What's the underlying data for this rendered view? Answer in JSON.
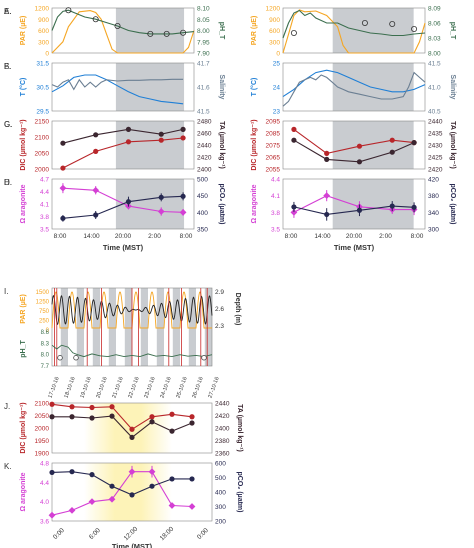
{
  "colors": {
    "par": "#f5a623",
    "ph": "#3b6e4e",
    "temp": "#1f7fd6",
    "salinity": "#6b7f93",
    "dic": "#b8262a",
    "ta": "#3b2630",
    "arag": "#d43fd4",
    "pco2": "#262850",
    "night": "#c9ccd0",
    "day": "#fdf3b8"
  },
  "chart_data": [
    {
      "id": "A",
      "type": "line",
      "panel": "A.",
      "xlim": [
        0,
        26
      ],
      "ylabel_left": "PAR (µE)",
      "ylabel_right": "pH_T",
      "left_ticks": [
        "0",
        "300",
        "600",
        "900",
        "1200"
      ],
      "right_ticks": [
        "7.90",
        "7.95",
        "8.00",
        "8.05",
        "8.10"
      ],
      "ylim_left": [
        0,
        1200
      ],
      "ylim_right": [
        7.9,
        8.1
      ],
      "series": [
        {
          "axis": "left",
          "color": "par",
          "x": [
            0,
            2,
            3,
            5,
            7,
            8,
            9,
            10,
            11,
            12,
            24,
            25,
            26
          ],
          "y": [
            0,
            300,
            700,
            1100,
            1130,
            1080,
            900,
            500,
            100,
            0,
            0,
            150,
            600
          ]
        },
        {
          "axis": "right",
          "color": "ph",
          "x": [
            0,
            1,
            2,
            3,
            4,
            6,
            8,
            10,
            12,
            14,
            16,
            18,
            20,
            22,
            24,
            26
          ],
          "y": [
            8.0,
            8.06,
            8.085,
            8.09,
            8.08,
            8.06,
            8.05,
            8.035,
            8.02,
            8.0,
            7.99,
            7.985,
            7.985,
            7.985,
            7.99,
            7.995
          ],
          "markers": {
            "x": [
              3,
              8,
              12,
              18,
              21,
              24
            ],
            "y": [
              8.09,
              8.05,
              8.02,
              7.985,
              7.985,
              7.99
            ]
          }
        }
      ]
    },
    {
      "id": "B",
      "type": "line",
      "panel": "B.",
      "xlim": [
        0,
        26
      ],
      "ylabel_left": "T (°C)",
      "ylabel_right": "Salinity",
      "left_ticks": [
        "29.5",
        "30.5",
        "31.5"
      ],
      "right_ticks": [
        "41.5",
        "41.6",
        "41.7"
      ],
      "ylim_left": [
        29.5,
        31.5
      ],
      "ylim_right": [
        41.5,
        41.7
      ],
      "series": [
        {
          "axis": "left",
          "color": "temp",
          "x": [
            0,
            2,
            4,
            6,
            8,
            10,
            12,
            14,
            16,
            18,
            20,
            22,
            24
          ],
          "y": [
            30.3,
            30.55,
            30.9,
            31.0,
            31.0,
            30.8,
            30.55,
            30.3,
            30.1,
            30.0,
            29.9,
            29.85,
            29.8
          ]
        },
        {
          "axis": "right",
          "color": "salinity",
          "x": [
            0,
            1,
            2,
            3,
            4,
            5,
            6,
            7,
            8,
            9,
            10,
            12,
            14,
            16,
            18,
            20,
            22,
            24
          ],
          "y": [
            41.61,
            41.6,
            41.62,
            41.63,
            41.59,
            41.63,
            41.6,
            41.62,
            41.6,
            41.62,
            41.63,
            41.625,
            41.628,
            41.628,
            41.63,
            41.63,
            41.632,
            41.632
          ]
        }
      ]
    },
    {
      "id": "C",
      "type": "line",
      "panel": "C.",
      "xlim": [
        0,
        26
      ],
      "ylabel_left": "DIC (µmol kg⁻¹)",
      "ylabel_right": "TA (µmol kg⁻¹)",
      "left_ticks": [
        "2000",
        "2050",
        "2100",
        "2150"
      ],
      "right_ticks": [
        "2400",
        "2420",
        "2440",
        "2460",
        "2480"
      ],
      "ylim_left": [
        2000,
        2150
      ],
      "ylim_right": [
        2400,
        2480
      ],
      "series": [
        {
          "axis": "left",
          "color": "dic",
          "x": [
            2,
            8,
            14,
            20,
            24
          ],
          "y": [
            2003,
            2055,
            2085,
            2090,
            2097
          ]
        },
        {
          "axis": "right",
          "color": "ta",
          "x": [
            2,
            8,
            14,
            20,
            24
          ],
          "y": [
            2443,
            2457,
            2466,
            2458,
            2466
          ]
        }
      ]
    },
    {
      "id": "D",
      "type": "line",
      "panel": "D.",
      "xlim": [
        0,
        26
      ],
      "ylabel_left": "Ω aragonite",
      "ylabel_right": "pCO₂ (µatm)",
      "left_ticks": [
        "3.5",
        "3.8",
        "4.1",
        "4.4",
        "4.7"
      ],
      "right_ticks": [
        "350",
        "400",
        "450",
        "500"
      ],
      "ylim_left": [
        3.5,
        4.7
      ],
      "ylim_right": [
        350,
        500
      ],
      "series": [
        {
          "axis": "left",
          "color": "arag",
          "x": [
            2,
            8,
            14,
            20,
            24
          ],
          "y": [
            4.48,
            4.43,
            4.05,
            3.92,
            3.9
          ],
          "err": [
            0.12,
            0.1,
            0.08,
            0.1,
            0.08
          ]
        },
        {
          "axis": "right",
          "color": "pco2",
          "x": [
            2,
            8,
            14,
            20,
            24
          ],
          "y": [
            382,
            392,
            432,
            445,
            448
          ],
          "err": [
            10,
            12,
            15,
            12,
            12
          ]
        }
      ],
      "x_ticks": [
        "8:00",
        "14:00",
        "20:00",
        "2:00",
        "8:00"
      ],
      "xlabel": "Time (MST)"
    },
    {
      "id": "E",
      "type": "line",
      "panel": "E.",
      "xlim": [
        0,
        26
      ],
      "ylabel_left": "PAR (µE)",
      "ylabel_right": "pH_T",
      "left_ticks": [
        "0",
        "300",
        "600",
        "900",
        "1200"
      ],
      "right_ticks": [
        "8.00",
        "8.03",
        "8.06",
        "8.09"
      ],
      "ylim_left": [
        0,
        1200
      ],
      "ylim_right": [
        8.0,
        8.09
      ],
      "series": [
        {
          "axis": "left",
          "color": "par",
          "x": [
            0,
            1,
            2,
            3,
            4,
            6,
            8,
            10,
            11,
            12,
            24,
            25,
            26
          ],
          "y": [
            0,
            500,
            1000,
            1150,
            1100,
            1120,
            1000,
            700,
            200,
            0,
            0,
            300,
            800
          ]
        },
        {
          "axis": "right",
          "color": "ph",
          "x": [
            0,
            1,
            2,
            3,
            4,
            5,
            6,
            8,
            10,
            12,
            14,
            16,
            18,
            20,
            22,
            24,
            26
          ],
          "y": [
            8.03,
            8.06,
            8.08,
            8.085,
            8.075,
            8.08,
            8.07,
            8.06,
            8.06,
            8.05,
            8.045,
            8.04,
            8.038,
            8.035,
            8.035,
            8.038,
            8.04
          ],
          "markers": {
            "x": [
              2,
              15,
              20,
              24
            ],
            "y": [
              8.04,
              8.06,
              8.058,
              8.048
            ]
          }
        }
      ]
    },
    {
      "id": "F",
      "type": "line",
      "panel": "F.",
      "xlim": [
        0,
        26
      ],
      "ylabel_left": "T (°C)",
      "ylabel_right": "Salinity",
      "left_ticks": [
        "23",
        "24",
        "25"
      ],
      "right_ticks": [
        "40.5",
        "41.0",
        "41.5"
      ],
      "ylim_left": [
        23,
        25
      ],
      "ylim_right": [
        40.5,
        41.5
      ],
      "series": [
        {
          "axis": "left",
          "color": "temp",
          "x": [
            0,
            2,
            4,
            6,
            8,
            10,
            12,
            14,
            16,
            18,
            20,
            22,
            24,
            26
          ],
          "y": [
            23.6,
            23.9,
            24.3,
            24.6,
            24.7,
            24.6,
            24.4,
            24.2,
            24.0,
            23.9,
            23.8,
            23.8,
            23.9,
            24.1
          ]
        },
        {
          "axis": "right",
          "color": "salinity",
          "x": [
            0,
            1,
            2,
            3,
            4,
            5,
            6,
            7,
            8,
            9,
            10,
            11,
            12,
            14,
            16,
            18,
            20,
            22,
            23,
            24,
            25,
            26
          ],
          "y": [
            40.6,
            40.7,
            40.9,
            41.1,
            41.15,
            41.2,
            41.15,
            41.25,
            41.2,
            41.1,
            41.0,
            40.95,
            40.9,
            40.85,
            40.8,
            40.75,
            40.75,
            40.8,
            41.0,
            41.3,
            41.2,
            41.1
          ]
        }
      ]
    },
    {
      "id": "G",
      "type": "line",
      "panel": "G.",
      "xlim": [
        0,
        26
      ],
      "ylabel_left": "DIC (µmol kg⁻¹)",
      "ylabel_right": "TA (µmol kg⁻¹)",
      "left_ticks": [
        "2055",
        "2065",
        "2075",
        "2085",
        "2095"
      ],
      "right_ticks": [
        "2420",
        "2425",
        "2430",
        "2435",
        "2440"
      ],
      "ylim_left": [
        2055,
        2095
      ],
      "ylim_right": [
        2420,
        2440
      ],
      "series": [
        {
          "axis": "left",
          "color": "dic",
          "x": [
            2,
            8,
            14,
            20,
            24
          ],
          "y": [
            2088,
            2068,
            2074,
            2079,
            2077
          ]
        },
        {
          "axis": "right",
          "color": "ta",
          "x": [
            2,
            8,
            14,
            20,
            24
          ],
          "y": [
            2432,
            2424,
            2423,
            2427,
            2431
          ]
        }
      ]
    },
    {
      "id": "H",
      "type": "line",
      "panel": "H.",
      "xlim": [
        0,
        26
      ],
      "ylabel_left": "Ω aragonite",
      "ylabel_right": "pCO₂ (µatm)",
      "left_ticks": [
        "3.5",
        "3.8",
        "4.1",
        "4.4"
      ],
      "right_ticks": [
        "300",
        "340",
        "380",
        "420"
      ],
      "ylim_left": [
        3.5,
        4.4
      ],
      "ylim_right": [
        300,
        420
      ],
      "series": [
        {
          "axis": "left",
          "color": "arag",
          "x": [
            2,
            8,
            14,
            20,
            24
          ],
          "y": [
            3.8,
            4.1,
            3.9,
            3.85,
            3.85
          ],
          "err": [
            0.1,
            0.1,
            0.1,
            0.08,
            0.1
          ]
        },
        {
          "axis": "right",
          "color": "pco2",
          "x": [
            2,
            8,
            14,
            20,
            24
          ],
          "y": [
            353,
            335,
            345,
            355,
            352
          ],
          "err": [
            12,
            15,
            14,
            12,
            12
          ]
        }
      ],
      "x_ticks": [
        "8:00",
        "14:00",
        "20:00",
        "2:00",
        "8:00"
      ],
      "xlabel": "Time (MST)"
    },
    {
      "id": "I",
      "type": "line",
      "panel": "I.",
      "xlim": [
        0,
        10
      ],
      "ylabel_par": "PAR (µE)",
      "par_ticks": [
        "0",
        "250",
        "750",
        "1250",
        "1500"
      ],
      "ylabel_depth": "Depth (m)",
      "depth_ticks": [
        "2.3",
        "2.6",
        "2.9"
      ],
      "ylabel_ph": "pH_T",
      "ph_ticks": [
        "7.7",
        "8.0",
        "8.3",
        "8.6"
      ],
      "dates": [
        "17-10-16",
        "18-10-16",
        "19-10-16",
        "20-10-16",
        "21-10-16",
        "22-10-16",
        "23-10-16",
        "24-10-16",
        "25-10-16",
        "26-10-16",
        "27-10-16"
      ],
      "ph_series": {
        "x": [
          0,
          0.3,
          0.6,
          1,
          1.3,
          1.6,
          2,
          2.5,
          3,
          3.5,
          4,
          4.5,
          5,
          5.5,
          6,
          6.5,
          7,
          7.5,
          8,
          8.5,
          9,
          9.5,
          10
        ],
        "y": [
          8.25,
          8.15,
          8.25,
          8.2,
          8.05,
          8.0,
          7.95,
          8.02,
          7.97,
          7.95,
          8.0,
          7.95,
          7.98,
          7.95,
          8.02,
          7.96,
          7.98,
          7.95,
          8.0,
          7.96,
          7.98,
          7.95,
          8.0
        ]
      },
      "ph_markers": [
        0.5,
        1.5,
        9.5
      ]
    },
    {
      "id": "J",
      "type": "line",
      "panel": "J.",
      "xlim": [
        0,
        24
      ],
      "ylabel_left": "DIC (µmol kg⁻¹)",
      "ylabel_right": "TA (µmol kg⁻¹)",
      "left_ticks": [
        "1900",
        "1950",
        "2000",
        "2050",
        "2100"
      ],
      "right_ticks": [
        "2360",
        "2380",
        "2400",
        "2420",
        "2440"
      ],
      "ylim_left": [
        1900,
        2100
      ],
      "ylim_right": [
        2360,
        2440
      ],
      "series": [
        {
          "axis": "left",
          "color": "dic",
          "x": [
            0,
            3,
            6,
            9,
            12,
            15,
            18,
            21
          ],
          "y": [
            2095,
            2085,
            2082,
            2085,
            1995,
            2045,
            2055,
            2045
          ]
        },
        {
          "axis": "right",
          "color": "ta",
          "x": [
            0,
            3,
            6,
            9,
            12,
            15,
            18,
            21
          ],
          "y": [
            2418,
            2418,
            2416,
            2419,
            2385,
            2410,
            2395,
            2408
          ]
        }
      ]
    },
    {
      "id": "K",
      "type": "line",
      "panel": "K.",
      "xlim": [
        0,
        24
      ],
      "ylabel_left": "Ω aragonite",
      "ylabel_right": "pCO₂ (µatm)",
      "left_ticks": [
        "3.6",
        "4.0",
        "4.4",
        "4.8"
      ],
      "right_ticks": [
        "200",
        "300",
        "400",
        "500",
        "600"
      ],
      "ylim_left": [
        3.6,
        4.8
      ],
      "ylim_right": [
        200,
        600
      ],
      "series": [
        {
          "axis": "left",
          "color": "arag",
          "x": [
            0,
            3,
            6,
            9,
            12,
            15,
            18,
            21
          ],
          "y": [
            3.72,
            3.82,
            4.0,
            4.05,
            4.62,
            4.62,
            3.92,
            3.9
          ],
          "err": [
            0.05,
            0.05,
            0.05,
            0.05,
            0.12,
            0.12,
            0.05,
            0.05
          ]
        },
        {
          "axis": "right",
          "color": "pco2",
          "x": [
            0,
            3,
            6,
            9,
            12,
            15,
            18,
            21
          ],
          "y": [
            535,
            540,
            520,
            440,
            380,
            440,
            490,
            490
          ],
          "err": [
            10,
            10,
            12,
            12,
            15,
            12,
            10,
            10
          ]
        }
      ],
      "x_ticks": [
        "0:00",
        "6:00",
        "12:00",
        "18:00",
        "0:00"
      ],
      "xlabel": "Time (MST)"
    }
  ]
}
